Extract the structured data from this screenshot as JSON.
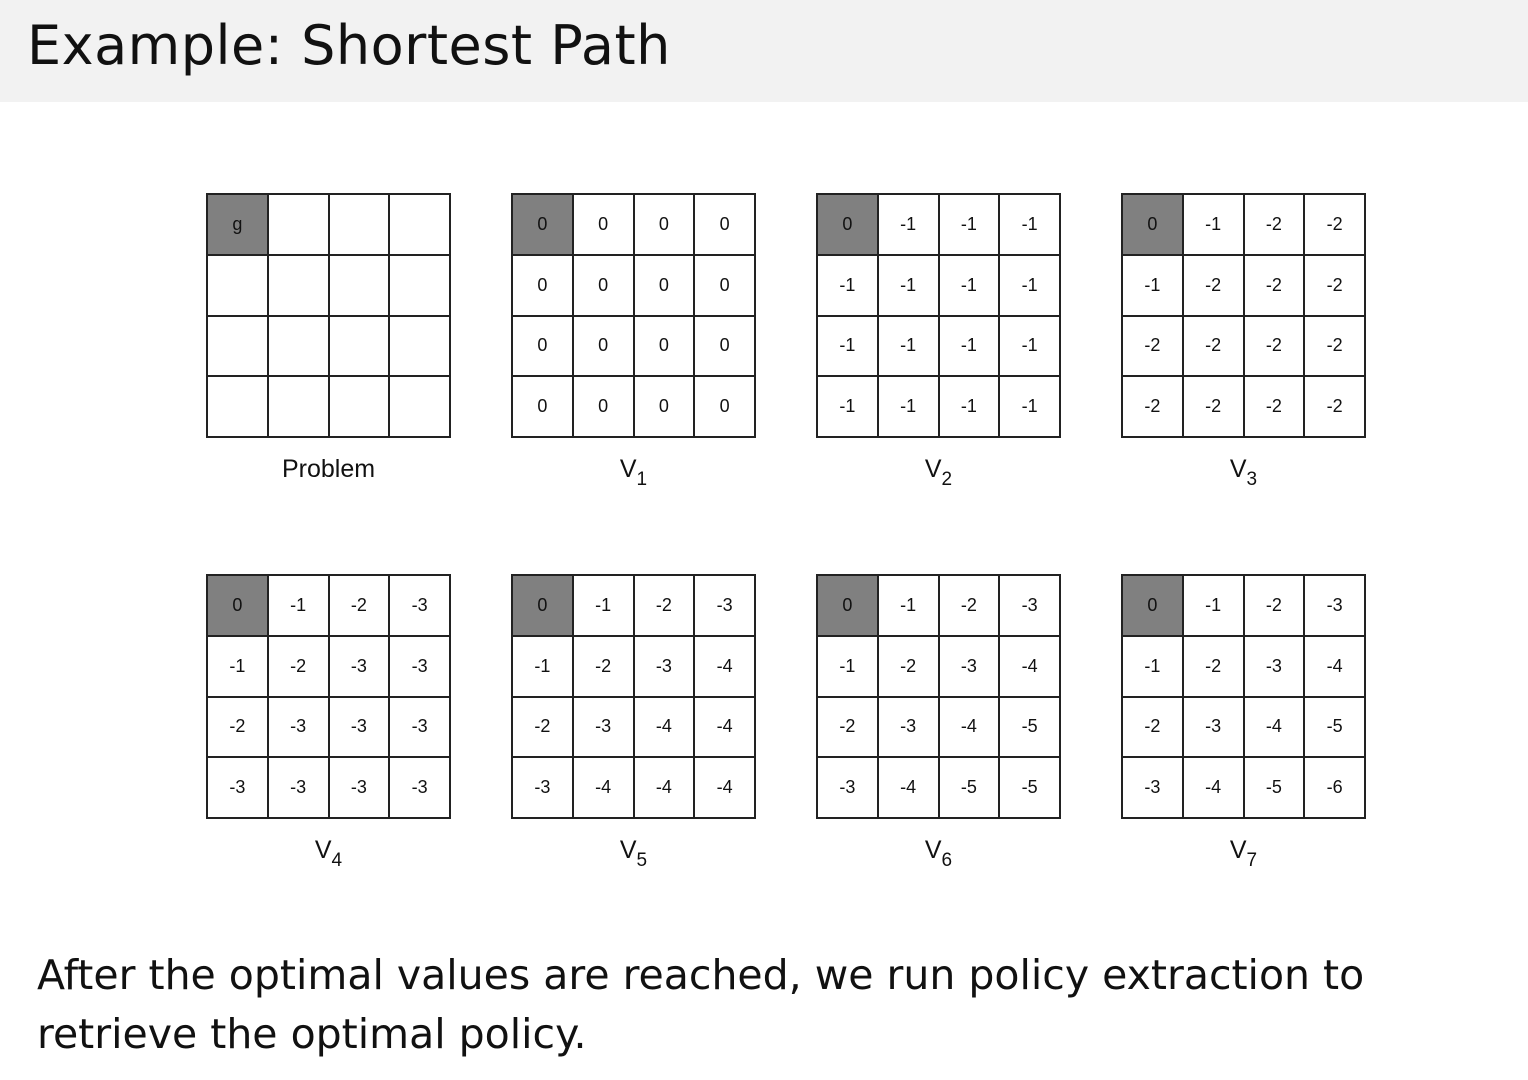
{
  "title": "Example: Shortest Path",
  "goal_color": "#808080",
  "grids": [
    {
      "label": "Problem",
      "subscript": "",
      "cells": [
        [
          "g",
          "",
          "",
          ""
        ],
        [
          "",
          "",
          "",
          ""
        ],
        [
          "",
          "",
          "",
          ""
        ],
        [
          "",
          "",
          "",
          ""
        ]
      ]
    },
    {
      "label": "V",
      "subscript": "1",
      "cells": [
        [
          "0",
          "0",
          "0",
          "0"
        ],
        [
          "0",
          "0",
          "0",
          "0"
        ],
        [
          "0",
          "0",
          "0",
          "0"
        ],
        [
          "0",
          "0",
          "0",
          "0"
        ]
      ]
    },
    {
      "label": "V",
      "subscript": "2",
      "cells": [
        [
          "0",
          "-1",
          "-1",
          "-1"
        ],
        [
          "-1",
          "-1",
          "-1",
          "-1"
        ],
        [
          "-1",
          "-1",
          "-1",
          "-1"
        ],
        [
          "-1",
          "-1",
          "-1",
          "-1"
        ]
      ]
    },
    {
      "label": "V",
      "subscript": "3",
      "cells": [
        [
          "0",
          "-1",
          "-2",
          "-2"
        ],
        [
          "-1",
          "-2",
          "-2",
          "-2"
        ],
        [
          "-2",
          "-2",
          "-2",
          "-2"
        ],
        [
          "-2",
          "-2",
          "-2",
          "-2"
        ]
      ]
    },
    {
      "label": "V",
      "subscript": "4",
      "cells": [
        [
          "0",
          "-1",
          "-2",
          "-3"
        ],
        [
          "-1",
          "-2",
          "-3",
          "-3"
        ],
        [
          "-2",
          "-3",
          "-3",
          "-3"
        ],
        [
          "-3",
          "-3",
          "-3",
          "-3"
        ]
      ]
    },
    {
      "label": "V",
      "subscript": "5",
      "cells": [
        [
          "0",
          "-1",
          "-2",
          "-3"
        ],
        [
          "-1",
          "-2",
          "-3",
          "-4"
        ],
        [
          "-2",
          "-3",
          "-4",
          "-4"
        ],
        [
          "-3",
          "-4",
          "-4",
          "-4"
        ]
      ]
    },
    {
      "label": "V",
      "subscript": "6",
      "cells": [
        [
          "0",
          "-1",
          "-2",
          "-3"
        ],
        [
          "-1",
          "-2",
          "-3",
          "-4"
        ],
        [
          "-2",
          "-3",
          "-4",
          "-5"
        ],
        [
          "-3",
          "-4",
          "-5",
          "-5"
        ]
      ]
    },
    {
      "label": "V",
      "subscript": "7",
      "cells": [
        [
          "0",
          "-1",
          "-2",
          "-3"
        ],
        [
          "-1",
          "-2",
          "-3",
          "-4"
        ],
        [
          "-2",
          "-3",
          "-4",
          "-5"
        ],
        [
          "-3",
          "-4",
          "-5",
          "-6"
        ]
      ]
    }
  ],
  "body_text": "After the optimal values are reached, we run policy extraction to retrieve the optimal policy."
}
